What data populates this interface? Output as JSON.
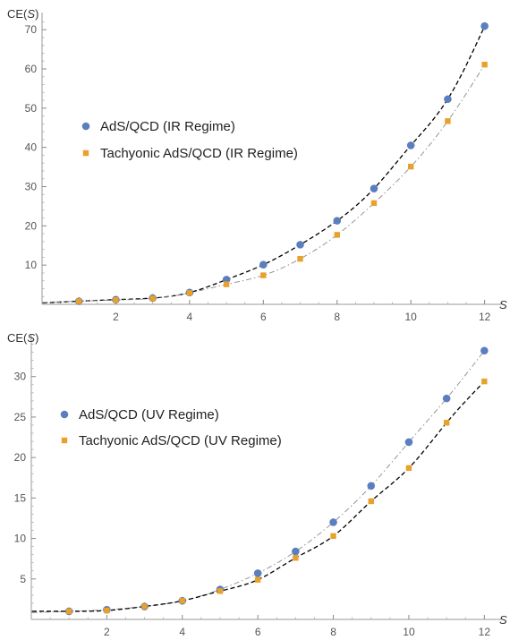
{
  "chart_data": [
    {
      "type": "scatter",
      "title": "",
      "xlabel": "S",
      "ylabel": "CE(S)",
      "xlim": [
        0,
        12.3
      ],
      "ylim": [
        0,
        73
      ],
      "xticks": [
        2,
        4,
        6,
        8,
        10,
        12
      ],
      "yticks": [
        10,
        20,
        30,
        40,
        50,
        60,
        70
      ],
      "legend_position": "left-middle",
      "series": [
        {
          "name": "AdS/QCD (IR Regime)",
          "marker": "circle",
          "color": "#5b7fbe",
          "fit_line": "dashed",
          "fit_color": "#000000",
          "x": [
            1,
            2,
            3,
            4,
            5,
            6,
            7,
            8,
            9,
            10,
            11,
            12
          ],
          "y": [
            0.8,
            1.2,
            1.6,
            3.0,
            6.3,
            10.1,
            15.2,
            21.3,
            29.5,
            40.5,
            52.3,
            70.9
          ]
        },
        {
          "name": "Tachyonic AdS/QCD (IR Regime)",
          "marker": "square",
          "color": "#e8a12a",
          "fit_line": "dashdot",
          "fit_color": "#8a8a8a",
          "x": [
            1,
            2,
            3,
            4,
            5,
            6,
            7,
            8,
            9,
            10,
            11,
            12
          ],
          "y": [
            0.8,
            1.1,
            1.5,
            2.9,
            5.1,
            7.4,
            11.6,
            17.7,
            25.8,
            35.1,
            46.7,
            61.1
          ]
        }
      ]
    },
    {
      "type": "scatter",
      "title": "",
      "xlabel": "S",
      "ylabel": "CE(S)",
      "xlim": [
        0,
        12.3
      ],
      "ylim": [
        0,
        34.5
      ],
      "xticks": [
        2,
        4,
        6,
        8,
        10,
        12
      ],
      "yticks": [
        5,
        10,
        15,
        20,
        25,
        30
      ],
      "legend_position": "left-middle",
      "series": [
        {
          "name": "AdS/QCD (UV Regime)",
          "marker": "circle",
          "color": "#5b7fbe",
          "fit_line": "dashdot",
          "fit_color": "#8a8a8a",
          "x": [
            1,
            2,
            3,
            4,
            5,
            6,
            7,
            8,
            9,
            10,
            11,
            12
          ],
          "y": [
            1.0,
            1.2,
            1.6,
            2.3,
            3.7,
            5.7,
            8.4,
            12.0,
            16.5,
            21.9,
            27.3,
            33.2
          ]
        },
        {
          "name": "Tachyonic AdS/QCD (UV Regime)",
          "marker": "square",
          "color": "#e8a12a",
          "fit_line": "dashed",
          "fit_color": "#000000",
          "x": [
            1,
            2,
            3,
            4,
            5,
            6,
            7,
            8,
            9,
            10,
            11,
            12
          ],
          "y": [
            1.0,
            1.1,
            1.6,
            2.3,
            3.5,
            4.9,
            7.6,
            10.3,
            14.6,
            18.7,
            24.3,
            29.4
          ]
        }
      ]
    }
  ]
}
